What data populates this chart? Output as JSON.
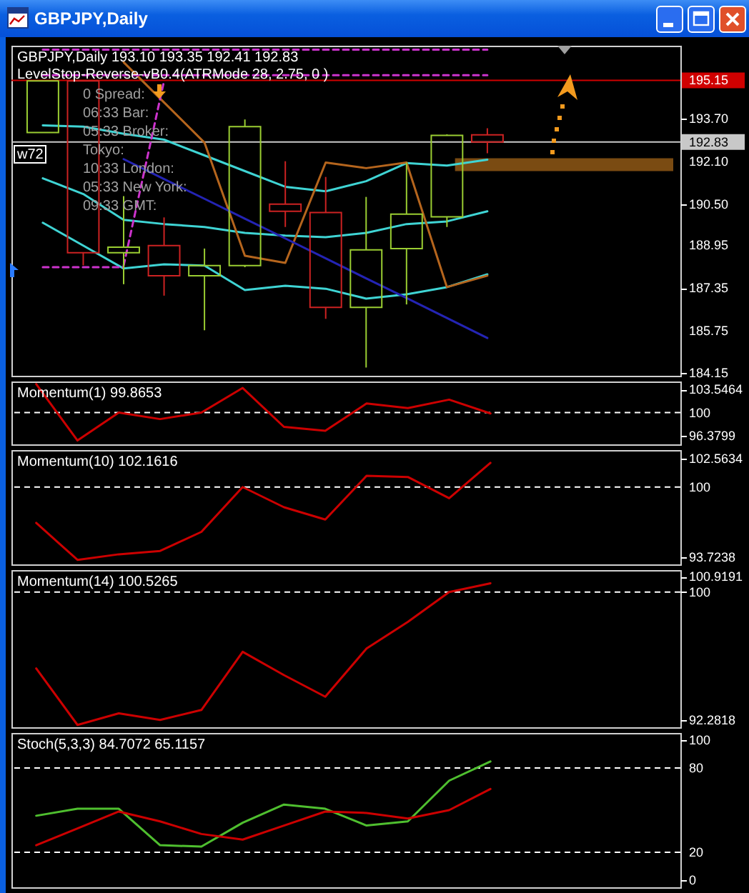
{
  "chart_data": [
    {
      "type": "candlestick",
      "title": "GBPJPY,Daily",
      "subtitle": "GBPJPY,Daily 193.10 193.35 192.41 192.83",
      "annotations": [
        "LevelStop-Reverse-vB0.4(ATRMode 28, 2.75, 0 )",
        "0 Spread:",
        "06:33 Bar:",
        "05:33 Broker:",
        "Tokyo:",
        "10:33 London:",
        "05:33 New York:",
        "09:33 GMT:",
        "w72"
      ],
      "categories": [
        null,
        null,
        null,
        null,
        null,
        null,
        null,
        null,
        null,
        null,
        null,
        null
      ],
      "ohlc": [
        [
          193.19,
          195.13,
          193.19,
          195.13
        ],
        [
          195.13,
          195.13,
          188.2,
          188.67
        ],
        [
          188.67,
          190.8,
          187.49,
          188.88
        ],
        [
          188.94,
          190.0,
          187.06,
          187.81
        ],
        [
          187.81,
          188.83,
          185.76,
          188.19
        ],
        [
          188.19,
          193.68,
          188.13,
          193.41
        ],
        [
          190.5,
          192.11,
          189.64,
          190.23
        ],
        [
          190.18,
          191.52,
          186.19,
          186.62
        ],
        [
          186.62,
          190.77,
          184.36,
          188.78
        ],
        [
          188.83,
          192.06,
          186.73,
          190.12
        ],
        [
          190.02,
          193.12,
          189.64,
          193.08
        ],
        [
          193.1,
          193.35,
          192.41,
          192.83
        ]
      ],
      "colors": [
        "#9acd32",
        "#cc2222",
        "#9acd32",
        "#cc2222",
        "#9acd32",
        "#9acd32",
        "#cc2222",
        "#cc2222",
        "#9acd32",
        "#9acd32",
        "#9acd32",
        "#cc2222"
      ],
      "series": [
        {
          "type": "line",
          "color": "#3fd4d4",
          "values": [
            193.46,
            193.41,
            193.14,
            192.92,
            192.33,
            191.74,
            191.15,
            190.98,
            191.36,
            192.04,
            191.95,
            192.17
          ]
        },
        {
          "type": "line",
          "color": "#3fd4d4",
          "values": [
            191.47,
            190.88,
            189.91,
            189.75,
            189.64,
            189.42,
            189.32,
            189.26,
            189.42,
            189.75,
            189.85,
            190.23
          ]
        },
        {
          "type": "line",
          "color": "#3fd4d4",
          "values": [
            189.8,
            188.94,
            188.08,
            188.24,
            188.19,
            187.27,
            187.43,
            187.32,
            186.95,
            187.11,
            187.38,
            187.86
          ]
        },
        {
          "type": "line",
          "color": "#b5651d",
          "values": [
            null,
            null,
            195.83,
            194.32,
            192.81,
            188.56,
            188.29,
            192.06,
            191.85,
            192.06,
            187.38,
            187.81
          ]
        },
        {
          "type": "line",
          "color": "#2424b4",
          "values": [
            null,
            null,
            192.19,
            191.44,
            190.7,
            189.95,
            189.21,
            188.46,
            187.71,
            186.97,
            186.22,
            185.47
          ]
        },
        {
          "type": "line",
          "color": "#cc33cc",
          "line_style": "dashed",
          "values": [
            196.3,
            196.3,
            196.3,
            196.3,
            196.3,
            196.3,
            196.3,
            196.3,
            196.3,
            196.3,
            196.3,
            196.3
          ]
        },
        {
          "type": "line",
          "color": "#cc33cc",
          "line_style": "dashed",
          "values": [
            195.34,
            195.34,
            195.34,
            195.34,
            195.34,
            195.34,
            195.34,
            195.34,
            195.34,
            195.34,
            195.34,
            195.34
          ]
        },
        {
          "type": "line",
          "color": "#cc33cc",
          "line_style": "dashed",
          "values": [
            null,
            null,
            188.19,
            195.13,
            null,
            null,
            null,
            null,
            null,
            null,
            null,
            null
          ]
        },
        {
          "type": "line",
          "color": "#cc33cc",
          "line_style": "dashed",
          "values": [
            188.13,
            188.13,
            188.13,
            null,
            null,
            null,
            null,
            null,
            null,
            null,
            null,
            null
          ]
        }
      ],
      "ylim": [
        184.05,
        196.45
      ],
      "yticks": [
        {
          "value": 193.7,
          "label": "193.70"
        },
        {
          "value": 192.1,
          "label": "192.10"
        },
        {
          "value": 190.5,
          "label": "190.50"
        },
        188.95,
        187.35,
        185.75,
        184.15
      ],
      "ref_lines": [
        {
          "axis": "y",
          "value": 195.15,
          "label": "195.15",
          "color": "#d00000"
        },
        {
          "axis": "y",
          "value": 192.83,
          "label": "192.83",
          "color": "#c8c8c8"
        }
      ],
      "bands": [
        {
          "axis": "y",
          "from": 191.74,
          "to": 192.22,
          "color": "#7a4b12"
        }
      ],
      "tick_labels": "y"
    },
    {
      "type": "line",
      "title": "Momentum(1) 99.8653",
      "categories": [
        null,
        null,
        null,
        null,
        null,
        null,
        null,
        null,
        null,
        null,
        null,
        null
      ],
      "series": [
        {
          "color": "#cc0000",
          "values": [
            104.4,
            95.7,
            100.0,
            99.0,
            100.0,
            103.8,
            97.8,
            97.2,
            101.4,
            100.7,
            102.0,
            99.8653
          ]
        }
      ],
      "ylim": [
        95.1,
        104.8
      ],
      "yticks": [
        96.3799,
        100,
        103.5464
      ],
      "ref_lines": [
        {
          "axis": "y",
          "value": 100,
          "color": "#ffffff",
          "line_style": "dashed"
        }
      ],
      "tick_labels": "y"
    },
    {
      "type": "line",
      "title": "Momentum(10) 102.1616",
      "categories": [
        null,
        null,
        null,
        null,
        null,
        null,
        null,
        null,
        null,
        null,
        null,
        null
      ],
      "series": [
        {
          "color": "#cc0000",
          "values": [
            96.8,
            93.5,
            94.0,
            94.3,
            96.0,
            100.0,
            98.2,
            97.1,
            101.0,
            100.9,
            99.0,
            102.1616
          ]
        }
      ],
      "ylim": [
        93.1,
        103.3
      ],
      "yticks": [
        93.7238,
        100,
        102.5634
      ],
      "ref_lines": [
        {
          "axis": "y",
          "value": 100,
          "color": "#ffffff",
          "line_style": "dashed"
        }
      ],
      "tick_labels": "y"
    },
    {
      "type": "line",
      "title": "Momentum(14) 100.5265",
      "categories": [
        null,
        null,
        null,
        null,
        null,
        null,
        null,
        null,
        null,
        null,
        null,
        null
      ],
      "series": [
        {
          "color": "#cc0000",
          "values": [
            95.4,
            92.0,
            92.7,
            92.3,
            92.9,
            96.4,
            95.0,
            93.7,
            96.6,
            98.2,
            100.0,
            100.5265
          ]
        }
      ],
      "ylim": [
        91.86,
        101.32
      ],
      "yticks": [
        92.2818,
        100,
        100.9191
      ],
      "ref_lines": [
        {
          "axis": "y",
          "value": 100,
          "color": "#ffffff",
          "line_style": "dashed"
        }
      ],
      "tick_labels": "y"
    },
    {
      "type": "line",
      "title": "Stoch(5,3,3) 84.7072 65.1157",
      "categories": [
        null,
        null,
        null,
        null,
        null,
        null,
        null,
        null,
        null,
        null,
        null,
        null
      ],
      "series": [
        {
          "color": "#4fbf2f",
          "values": [
            46,
            51,
            51,
            25,
            24,
            41,
            54,
            51,
            39,
            42,
            71,
            84.7072
          ]
        },
        {
          "color": "#cc0000",
          "values": [
            25,
            37,
            49,
            42,
            33,
            29,
            39,
            49,
            48,
            44,
            50,
            65.1157
          ]
        }
      ],
      "ylim": [
        -5,
        105
      ],
      "yticks": [
        0,
        20,
        80,
        100
      ],
      "ref_lines": [
        {
          "axis": "y",
          "value": 80,
          "color": "#ffffff",
          "line_style": "dashed"
        },
        {
          "axis": "y",
          "value": 20,
          "color": "#ffffff",
          "line_style": "dashed"
        }
      ],
      "tick_labels": "y"
    }
  ]
}
